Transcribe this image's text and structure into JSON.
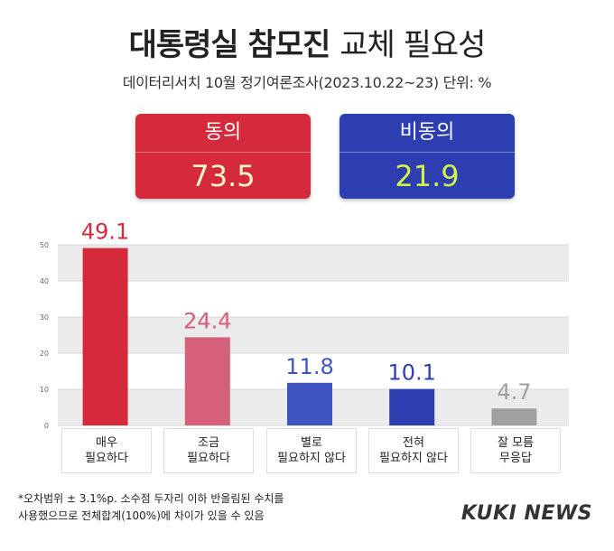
{
  "header": {
    "title_bold": "대통령실 참모진",
    "title_light": "교체 필요성",
    "subtitle": "데이터리서치 10월 정기여론조사(2023.10.22~23) 단위: %"
  },
  "summary": {
    "agree": {
      "label": "동의",
      "value": "73.5"
    },
    "disagree": {
      "label": "비동의",
      "value": "21.9"
    }
  },
  "chart_data": {
    "type": "bar",
    "categories": [
      "매우\n필요하다",
      "조금\n필요하다",
      "별로\n필요하지 않다",
      "전혀\n필요하지 않다",
      "잘 모름\n무응답"
    ],
    "values": [
      49.1,
      24.4,
      11.8,
      10.1,
      4.7
    ],
    "value_labels": [
      "49.1",
      "24.4",
      "11.8",
      "10.1",
      "4.7"
    ],
    "bar_colors": [
      "#d52a3c",
      "#d6607a",
      "#3f55c0",
      "#2d3fb0",
      "#a0a0a0"
    ],
    "label_colors": [
      "#d52a3c",
      "#d6607a",
      "#3f55c0",
      "#2d3fb0",
      "#a0a0a0"
    ],
    "yticks": [
      "0",
      "10",
      "20",
      "30",
      "40",
      "50"
    ],
    "ylim": [
      0,
      50
    ],
    "grid": true
  },
  "footnote": "*오차범위 ± 3.1%p. 소수점 두자리 이하 반올림된 수치를\n  사용했으므로 전체합계(100%)에 차이가 있을 수 있음",
  "brand": {
    "logo_text": "KUKI NEWS"
  }
}
